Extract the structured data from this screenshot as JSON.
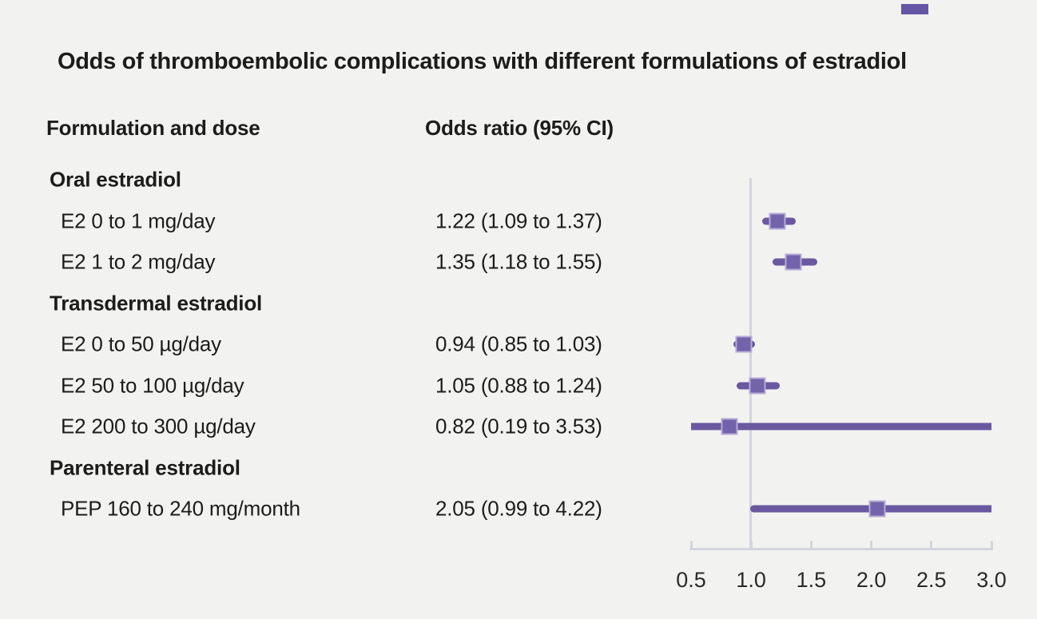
{
  "title": "Odds of thromboembolic complications with different formulations of estradiol",
  "columns": {
    "formulation": "Formulation and dose",
    "odds": "Odds ratio (95% CI)"
  },
  "colors": {
    "background": "#f2f2f0",
    "text": "#1c1c1c",
    "bar_purple": "#6a58a0",
    "marker_purple": "#7363ab",
    "marker_ring": "#b6aad6",
    "axis_gray": "#d3d5dd",
    "brand_purple": "#6456a5"
  },
  "chart_data": {
    "type": "scatter",
    "variant": "forest-plot",
    "title": "Odds of thromboembolic complications with different formulations of estradiol",
    "xlabel": "",
    "ylabel": "",
    "grid": false,
    "legend_position": "none",
    "x_axis": {
      "range": [
        0.5,
        3.0
      ],
      "ticks": [
        0.5,
        1.0,
        1.5,
        2.0,
        2.5,
        3.0
      ],
      "reference_line": 1.0
    },
    "rows": [
      {
        "type": "group",
        "label": "Oral estradiol"
      },
      {
        "type": "item",
        "label": "E2 0 to 1 mg/day",
        "value_text": "1.22 (1.09 to 1.37)",
        "est": 1.22,
        "lo": 1.09,
        "hi": 1.37
      },
      {
        "type": "item",
        "label": "E2 1 to 2 mg/day",
        "value_text": "1.35 (1.18 to 1.55)",
        "est": 1.35,
        "lo": 1.18,
        "hi": 1.55
      },
      {
        "type": "group",
        "label": "Transdermal estradiol"
      },
      {
        "type": "item",
        "label": "E2 0 to 50 µg/day",
        "value_text": "0.94 (0.85 to 1.03)",
        "est": 0.94,
        "lo": 0.85,
        "hi": 1.03
      },
      {
        "type": "item",
        "label": "E2 50 to 100 µg/day",
        "value_text": "1.05 (0.88 to 1.24)",
        "est": 1.05,
        "lo": 0.88,
        "hi": 1.24
      },
      {
        "type": "item",
        "label": "E2 200 to 300 µg/day",
        "value_text": "0.82 (0.19 to 3.53)",
        "est": 0.82,
        "lo": 0.19,
        "hi": 3.53
      },
      {
        "type": "group",
        "label": "Parenteral estradiol"
      },
      {
        "type": "item",
        "label": "PEP 160 to 240 mg/month",
        "value_text": "2.05 (0.99 to 4.22)",
        "est": 2.05,
        "lo": 0.99,
        "hi": 4.22
      }
    ]
  }
}
